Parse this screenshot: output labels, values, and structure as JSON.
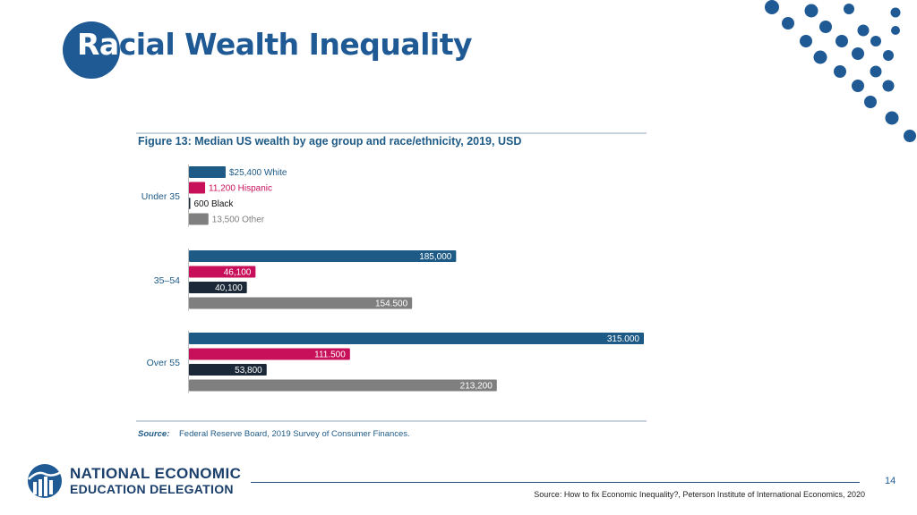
{
  "slide": {
    "title_lead": "Ra",
    "title_rest": "cial Wealth Inequality",
    "page_number": "14",
    "source": "Source: How to fix Economic Inequality?, Peterson Institute of International Economics, 2020",
    "logo": {
      "line1": "NATIONAL ECONOMIC",
      "line2": "EDUCATION DELEGATION"
    }
  },
  "colors": {
    "brand": "#1f5a95",
    "white_series": "#1e5a86",
    "hispanic_series": "#c8105a",
    "black_series": "#1a2838",
    "other_series": "#7f7f7f"
  },
  "chart_data": {
    "type": "bar",
    "orientation": "horizontal",
    "title": "Figure 13: Median US wealth by age group and race/ethnicity, 2019, USD",
    "categories": [
      "Under 35",
      "35–54",
      "Over 55"
    ],
    "series": [
      {
        "name": "White",
        "values": [
          25400,
          185000,
          315000
        ],
        "labels": [
          "$25,400",
          "185,000",
          "315.000"
        ]
      },
      {
        "name": "Hispanic",
        "values": [
          11200,
          46100,
          111500
        ],
        "labels": [
          "11,200",
          "46,100",
          "111.500"
        ]
      },
      {
        "name": "Black",
        "values": [
          600,
          40100,
          53800
        ],
        "labels": [
          "600",
          "40,100",
          "53,800"
        ]
      },
      {
        "name": "Other",
        "values": [
          13500,
          154500,
          213200
        ],
        "labels": [
          "13,500",
          "154.500",
          "213,200"
        ]
      }
    ],
    "xlim": [
      0,
      315000
    ],
    "grid": false,
    "source_label": "Source:",
    "source_text": "Federal Reserve Board, 2019 Survey of Consumer Finances."
  }
}
